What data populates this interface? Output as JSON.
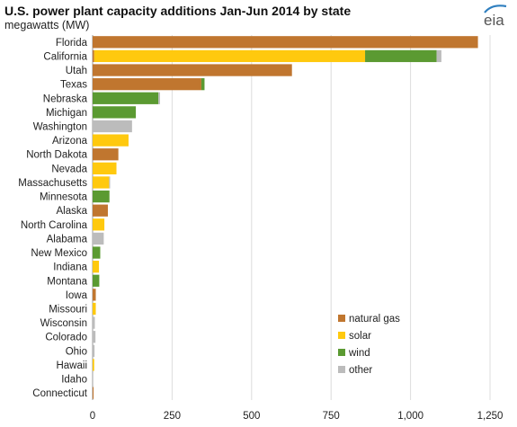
{
  "header": {
    "title": "U.S. power plant capacity additions Jan-Jun 2014 by state",
    "subtitle": "megawatts (MW)",
    "logo_text": "eia"
  },
  "colors": {
    "natural_gas": "#c0762f",
    "solar": "#ffc90e",
    "wind": "#5b9a32",
    "other": "#bcbcbc",
    "grid": "#dcdcdc",
    "logo_accent": "#2f7fbf"
  },
  "chart_data": {
    "type": "bar",
    "orientation": "horizontal",
    "stacked": true,
    "categories": [
      "Florida",
      "California",
      "Utah",
      "Texas",
      "Nebraska",
      "Michigan",
      "Washington",
      "Arizona",
      "North Dakota",
      "Nevada",
      "Massachusetts",
      "Minnesota",
      "Alaska",
      "North Carolina",
      "Alabama",
      "New Mexico",
      "Indiana",
      "Montana",
      "Iowa",
      "Missouri",
      "Wisconsin",
      "Colorado",
      "Ohio",
      "Hawaii",
      "Idaho",
      "Connecticut"
    ],
    "series": [
      {
        "name": "natural gas",
        "color": "#c0762f",
        "values": [
          1212,
          5,
          627,
          342,
          0,
          0,
          0,
          0,
          81,
          0,
          0,
          0,
          48,
          0,
          0,
          0,
          0,
          0,
          10,
          0,
          0,
          0,
          0,
          0,
          0,
          3
        ]
      },
      {
        "name": "solar",
        "color": "#ffc90e",
        "values": [
          0,
          852,
          0,
          0,
          0,
          0,
          0,
          113,
          0,
          75,
          52,
          0,
          0,
          37,
          0,
          0,
          20,
          0,
          0,
          10,
          0,
          0,
          0,
          5,
          0,
          0
        ]
      },
      {
        "name": "wind",
        "color": "#5b9a32",
        "values": [
          0,
          225,
          0,
          10,
          207,
          136,
          0,
          0,
          0,
          0,
          0,
          53,
          0,
          0,
          0,
          24,
          0,
          21,
          0,
          0,
          0,
          0,
          0,
          0,
          0,
          0
        ]
      },
      {
        "name": "other",
        "color": "#bcbcbc",
        "values": [
          0,
          15,
          0,
          0,
          5,
          0,
          124,
          0,
          0,
          0,
          3,
          0,
          0,
          0,
          35,
          0,
          0,
          0,
          0,
          0,
          7,
          9,
          6,
          0,
          2,
          0
        ]
      }
    ],
    "xlim": [
      0,
      1250
    ],
    "xticks": [
      0,
      250,
      500,
      750,
      1000,
      1250
    ],
    "xtick_labels": [
      "0",
      "250",
      "500",
      "750",
      "1,000",
      "1,250"
    ],
    "grid": "vertical",
    "legend_placement": "bottom-right"
  }
}
